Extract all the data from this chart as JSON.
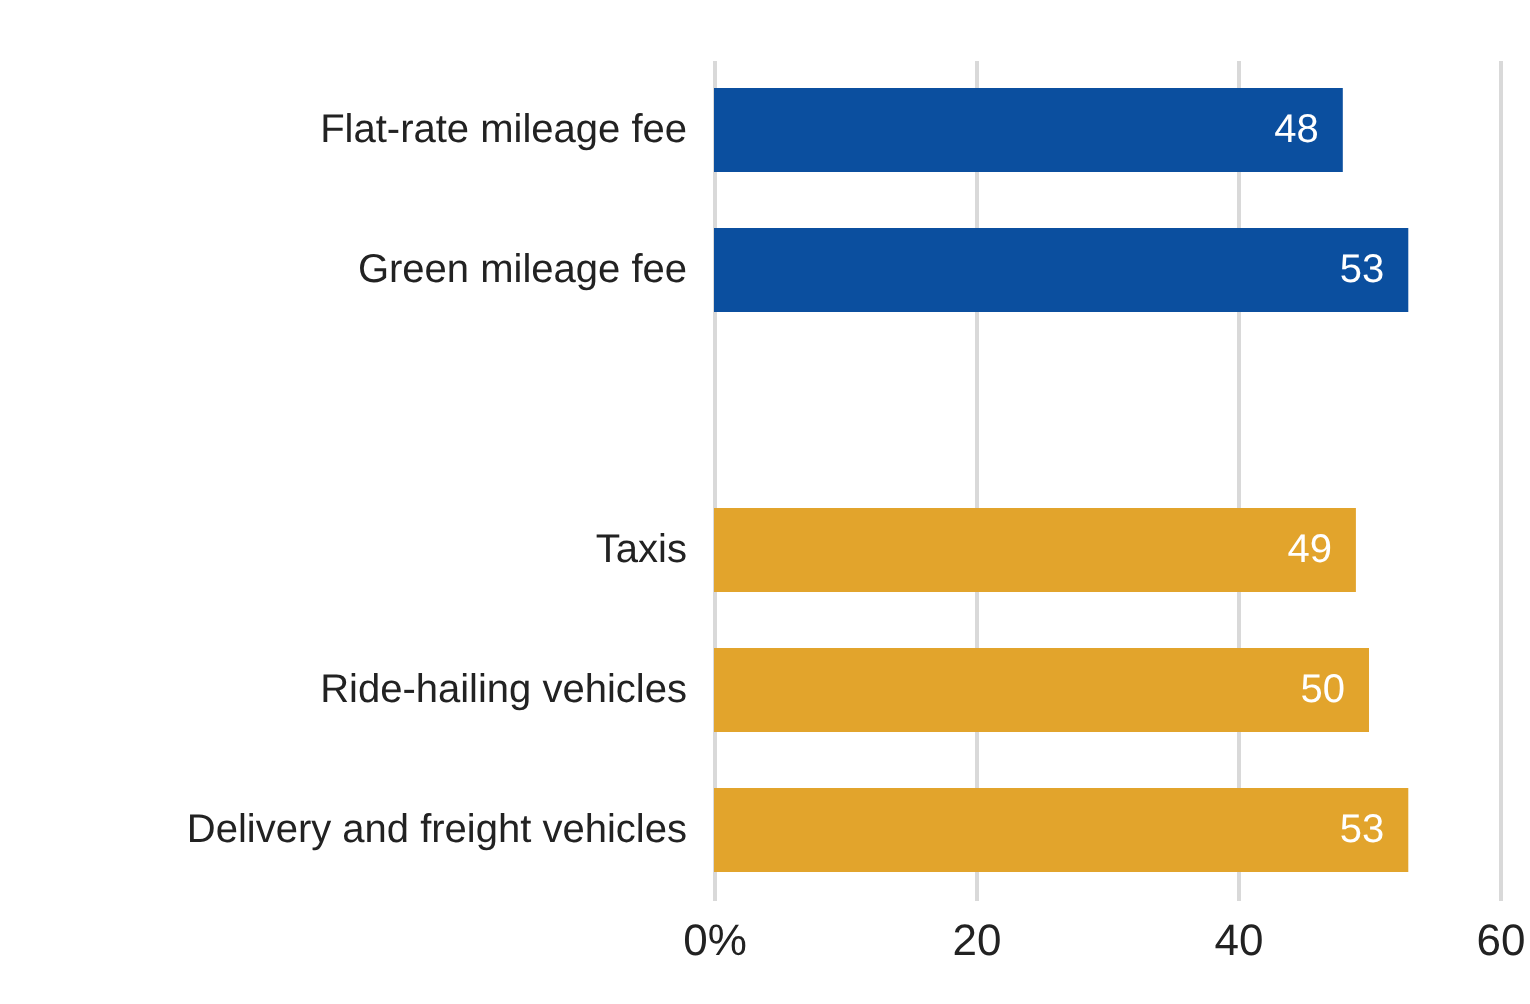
{
  "chart_data": {
    "type": "bar",
    "orientation": "horizontal",
    "categories": [
      "Flat-rate mileage fee",
      "Green mileage fee",
      null,
      "Taxis",
      "Ride-hailing vehicles",
      "Delivery and freight vehicles"
    ],
    "values": [
      48,
      53,
      null,
      49,
      50,
      53
    ],
    "colors": [
      "#0b4f9f",
      "#0b4f9f",
      null,
      "#e2a42c",
      "#e2a42c",
      "#e2a42c"
    ],
    "xlim": [
      0,
      60
    ],
    "xticks": [
      {
        "value": 0,
        "label": "0%"
      },
      20,
      40,
      60
    ],
    "grid": "x",
    "data_labels": true
  }
}
